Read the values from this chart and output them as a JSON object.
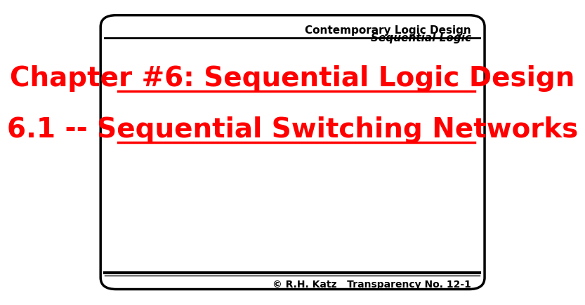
{
  "title_line1": "Chapter #6: Sequential Logic Design",
  "title_line2": "6.1 -- Sequential Switching Networks",
  "header_line1": "Contemporary Logic Design",
  "header_line2": "Sequential Logic",
  "footer_text": "© R.H. Katz   Transparency No. 12-1",
  "title_color": "#FF0000",
  "header_color": "#000000",
  "footer_color": "#000000",
  "bg_color": "#FFFFFF",
  "border_color": "#000000",
  "title_fontsize": 28,
  "header_fontsize": 11,
  "footer_fontsize": 10
}
